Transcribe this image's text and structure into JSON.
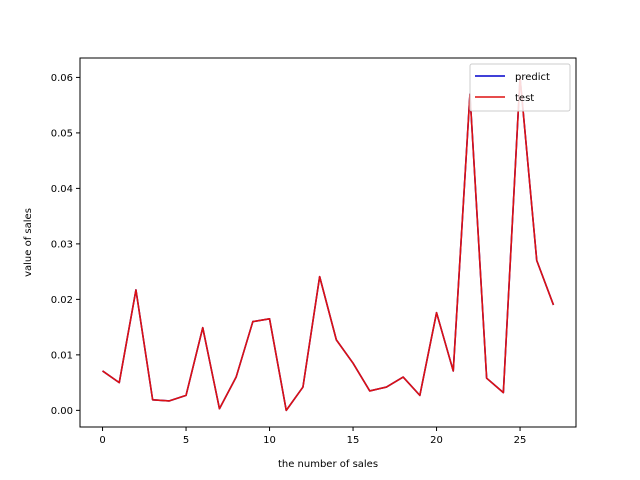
{
  "chart_data": {
    "type": "line",
    "xlabel": "the number of sales",
    "ylabel": "value of sales",
    "xlim": [
      -1.35,
      28.35
    ],
    "ylim": [
      -0.003,
      0.0635
    ],
    "xticks": [
      0,
      5,
      10,
      15,
      20,
      25
    ],
    "xtick_labels": [
      "0",
      "5",
      "10",
      "15",
      "20",
      "25"
    ],
    "yticks": [
      0.0,
      0.01,
      0.02,
      0.03,
      0.04,
      0.05,
      0.06
    ],
    "ytick_labels": [
      "0.00",
      "0.01",
      "0.02",
      "0.03",
      "0.04",
      "0.05",
      "0.06"
    ],
    "grid": false,
    "legend": "top-right",
    "x": [
      0,
      1,
      2,
      3,
      4,
      5,
      6,
      7,
      8,
      9,
      10,
      11,
      12,
      13,
      14,
      15,
      16,
      17,
      18,
      19,
      20,
      21,
      22,
      23,
      24,
      25,
      26,
      27
    ],
    "series": [
      {
        "name": "predict",
        "color": "#0000cc",
        "values": [
          0.0071,
          0.005,
          0.0217,
          0.0019,
          0.0017,
          0.0027,
          0.0149,
          0.0003,
          0.006,
          0.016,
          0.0165,
          0.0,
          0.0042,
          0.0241,
          0.0127,
          0.0085,
          0.0035,
          0.0042,
          0.006,
          0.0027,
          0.0176,
          0.0071,
          0.057,
          0.0058,
          0.0032,
          0.06,
          0.027,
          0.019
        ]
      },
      {
        "name": "test",
        "color": "#dd1111",
        "values": [
          0.0071,
          0.005,
          0.0217,
          0.0019,
          0.0017,
          0.0027,
          0.0149,
          0.0003,
          0.006,
          0.016,
          0.0165,
          0.0,
          0.0042,
          0.0241,
          0.0127,
          0.0085,
          0.0035,
          0.0042,
          0.006,
          0.0027,
          0.0176,
          0.0071,
          0.057,
          0.0058,
          0.0032,
          0.06,
          0.027,
          0.019
        ]
      }
    ]
  }
}
